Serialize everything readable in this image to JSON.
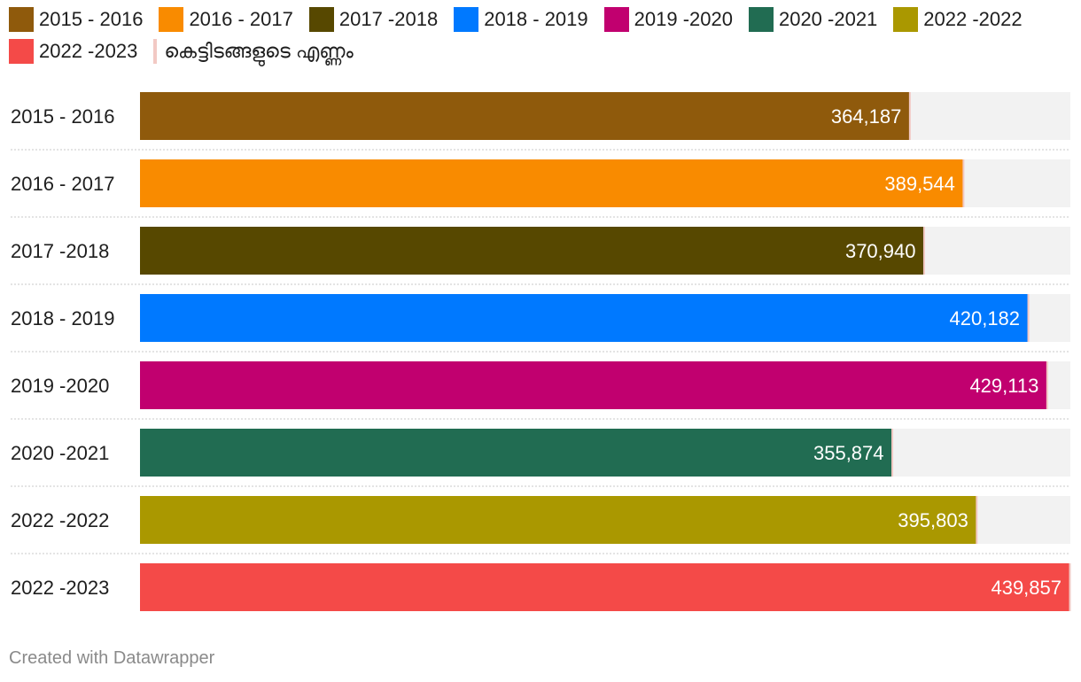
{
  "chart_data": {
    "type": "bar",
    "orientation": "horizontal",
    "categories": [
      "2015 - 2016",
      "2016 - 2017",
      "2017 -2018",
      "2018 - 2019",
      "2019 -2020",
      "2020 -2021",
      "2022 -2022",
      "2022 -2023"
    ],
    "values": [
      364187,
      389544,
      370940,
      420182,
      429113,
      355874,
      395803,
      439857
    ],
    "value_labels": [
      "364,187",
      "389,544",
      "370,940",
      "420,182",
      "429,113",
      "355,874",
      "395,803",
      "439,857"
    ],
    "colors": [
      "#8f5a0c",
      "#f98b00",
      "#574800",
      "#0079ff",
      "#c1006f",
      "#216c52",
      "#aa9800",
      "#f44a48"
    ],
    "xlim": [
      0,
      439857
    ],
    "legend": {
      "position": "top",
      "entries": [
        "2015 - 2016",
        "2016 - 2017",
        "2017 -2018",
        "2018 - 2019",
        "2019 -2020",
        "2020 -2021",
        "2022 -2022",
        "2022 -2023"
      ],
      "range_label": "കെട്ടിടങ്ങളുടെ എണ്ണം",
      "range_color": "#f2c9c4"
    },
    "background_track_color": "#f2f2f2",
    "grid": false
  },
  "credit": "Created with Datawrapper"
}
